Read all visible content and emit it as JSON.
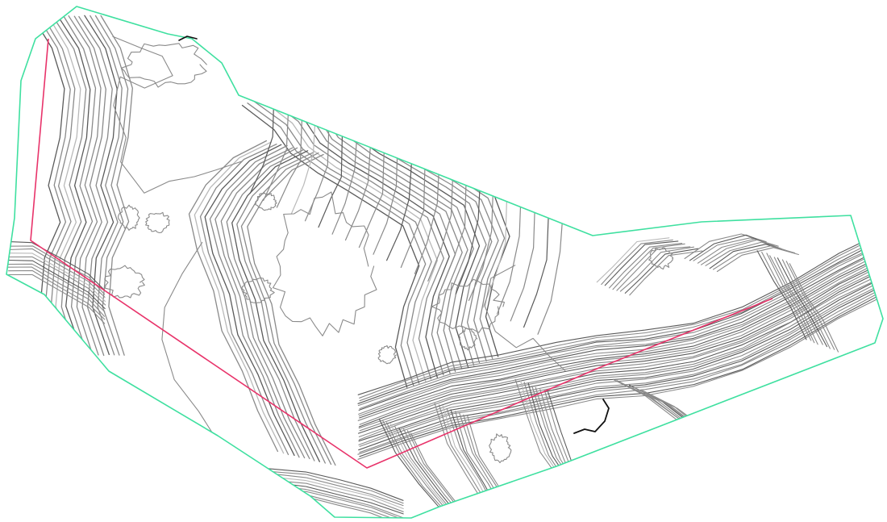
{
  "map": {
    "type": "topographic-contour-plan",
    "colors": {
      "background": "#ffffff",
      "boundary": "#3fe0a0",
      "profile_line": "#e8336a",
      "contour_minor": "#8a8a8a",
      "contour_major": "#5a5a5a",
      "contour_light": "#b9b9b9",
      "feature_dark": "#111111"
    },
    "layers": [
      "site-boundary",
      "contour-lines",
      "section-profile-line",
      "dark-feature-line"
    ]
  }
}
